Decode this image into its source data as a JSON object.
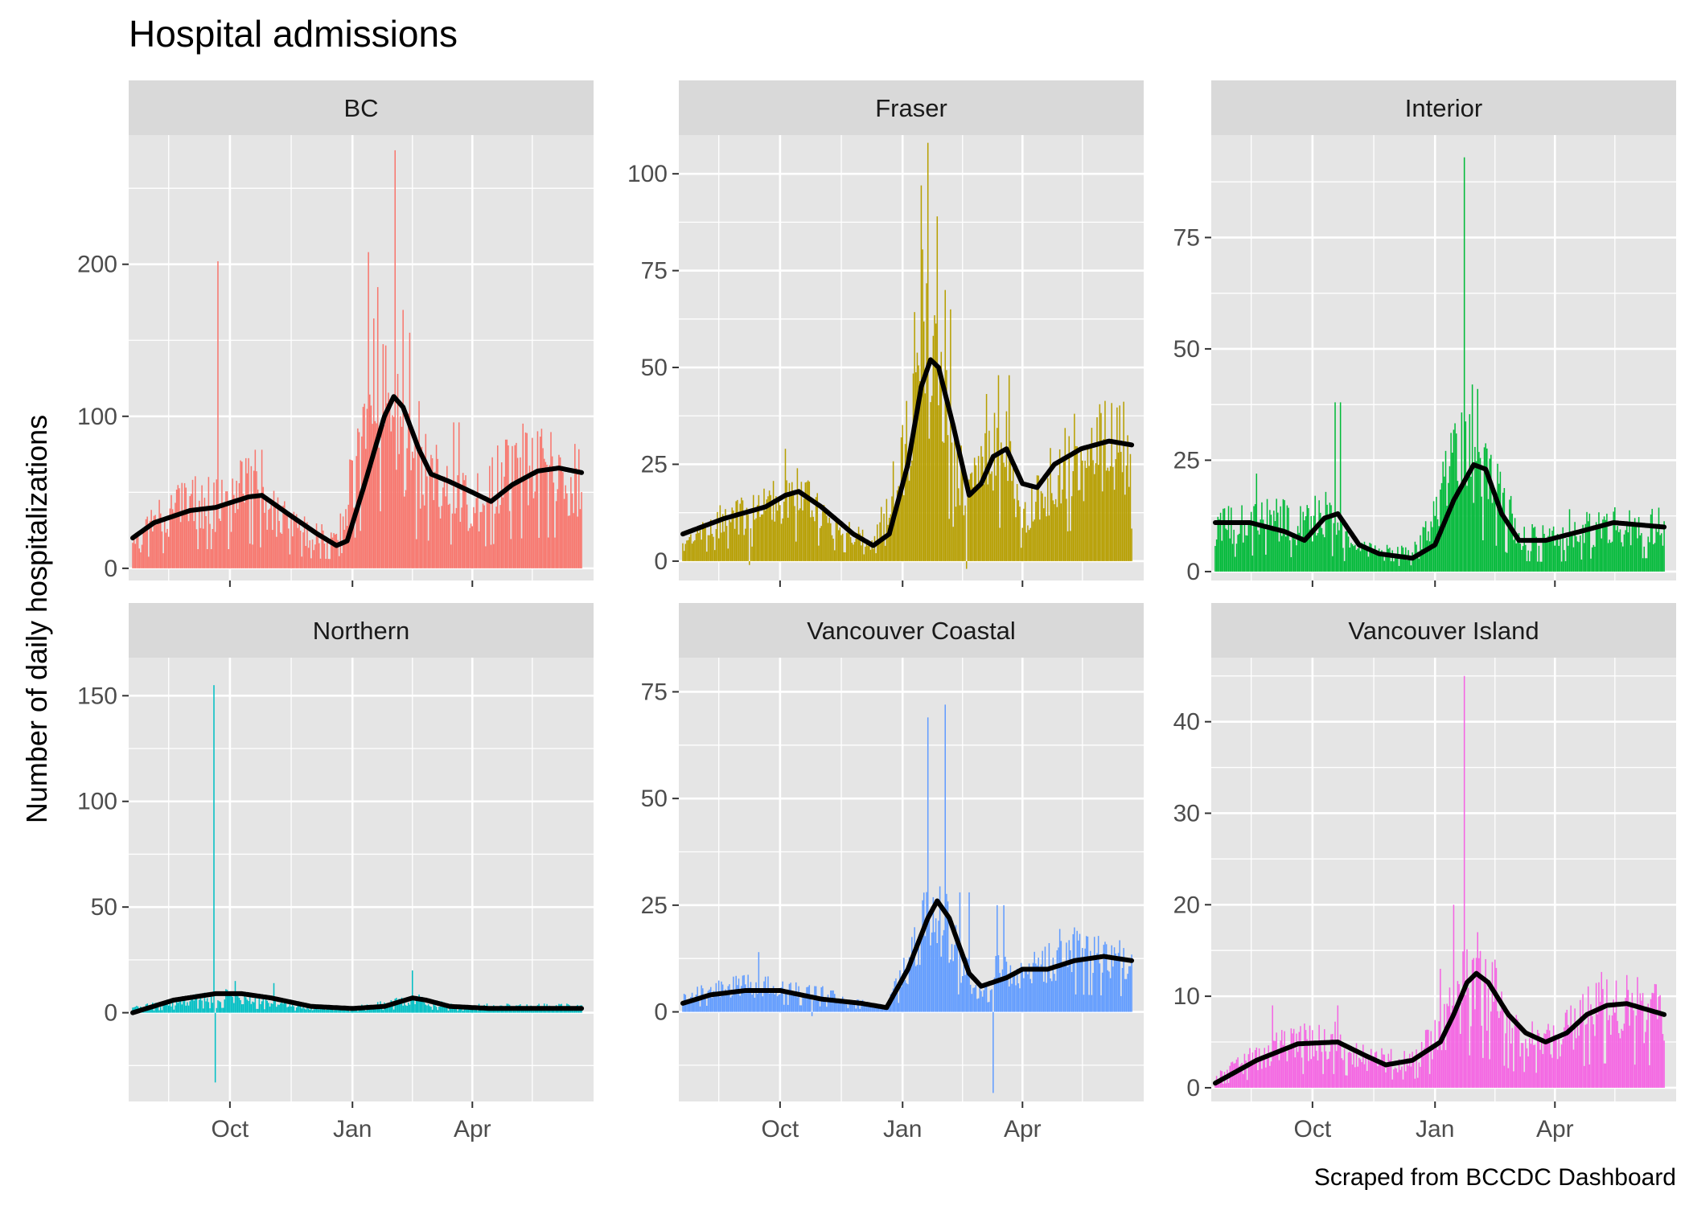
{
  "chart_data": {
    "type": "bar",
    "title": "Hospital admissions",
    "ylabel": "Number of daily hospitalizations",
    "xlabel": "",
    "caption": "Scraped from BCCDC Dashboard",
    "x_tick_labels": [
      "Oct",
      "Jan",
      "Apr"
    ],
    "x_range": [
      "2020-07-17",
      "2021-07-01"
    ],
    "x_ticks": [
      "2020-10-01",
      "2021-01-01",
      "2021-04-01"
    ],
    "x_minor_ticks": [
      "2020-08-16",
      "2020-11-16",
      "2021-02-15",
      "2021-05-16"
    ],
    "grid": true,
    "legend": "none",
    "smooth_line_color": "#000000",
    "panel_background": "#e5e5e5",
    "strip_background": "#d9d9d9",
    "panels": [
      {
        "name": "BC",
        "color": "#F8766D",
        "ylim": [
          -8,
          285
        ],
        "yticks": [
          0,
          100,
          200
        ],
        "yminor": [
          50,
          150,
          250
        ],
        "bar_knots": [
          [
            "2020-07-20",
            12
          ],
          [
            "2020-08-05",
            30
          ],
          [
            "2020-09-01",
            42
          ],
          [
            "2020-10-01",
            42
          ],
          [
            "2020-10-15",
            55
          ],
          [
            "2020-11-01",
            38
          ],
          [
            "2020-12-01",
            22
          ],
          [
            "2020-12-20",
            20
          ],
          [
            "2021-01-01",
            60
          ],
          [
            "2021-01-20",
            130
          ],
          [
            "2021-02-01",
            100
          ],
          [
            "2021-02-15",
            65
          ],
          [
            "2021-03-01",
            60
          ],
          [
            "2021-03-20",
            50
          ],
          [
            "2021-04-01",
            40
          ],
          [
            "2021-05-01",
            65
          ],
          [
            "2021-06-01",
            68
          ],
          [
            "2021-06-20",
            58
          ]
        ],
        "spikes": [
          [
            "2020-09-22",
            202
          ],
          [
            "2021-01-05",
            92
          ],
          [
            "2021-01-13",
            208
          ],
          [
            "2021-01-20",
            185
          ],
          [
            "2021-02-02",
            275
          ],
          [
            "2021-02-08",
            170
          ],
          [
            "2021-02-13",
            155
          ],
          [
            "2021-02-20",
            110
          ],
          [
            "2021-03-18",
            96
          ],
          [
            "2021-03-22",
            96
          ],
          [
            "2020-10-20",
            78
          ],
          [
            "2020-10-25",
            78
          ]
        ],
        "smooth": [
          [
            "2020-07-20",
            20
          ],
          [
            "2020-08-05",
            30
          ],
          [
            "2020-09-01",
            38
          ],
          [
            "2020-09-20",
            40
          ],
          [
            "2020-10-15",
            47
          ],
          [
            "2020-10-25",
            48
          ],
          [
            "2020-11-15",
            35
          ],
          [
            "2020-12-05",
            23
          ],
          [
            "2020-12-20",
            15
          ],
          [
            "2020-12-28",
            18
          ],
          [
            "2021-01-10",
            55
          ],
          [
            "2021-01-25",
            100
          ],
          [
            "2021-02-01",
            113
          ],
          [
            "2021-02-08",
            106
          ],
          [
            "2021-02-20",
            78
          ],
          [
            "2021-03-01",
            62
          ],
          [
            "2021-03-15",
            57
          ],
          [
            "2021-04-01",
            50
          ],
          [
            "2021-04-15",
            44
          ],
          [
            "2021-05-01",
            55
          ],
          [
            "2021-05-20",
            64
          ],
          [
            "2021-06-05",
            66
          ],
          [
            "2021-06-22",
            63
          ]
        ]
      },
      {
        "name": "Fraser",
        "color": "#B79F00",
        "ylim": [
          -5,
          110
        ],
        "yticks": [
          0,
          25,
          50,
          75,
          100
        ],
        "yminor": [
          12.5,
          37.5,
          62.5,
          87.5
        ],
        "bar_knots": [
          [
            "2020-07-20",
            4
          ],
          [
            "2020-08-15",
            10
          ],
          [
            "2020-09-15",
            13
          ],
          [
            "2020-10-05",
            18
          ],
          [
            "2020-10-25",
            15
          ],
          [
            "2020-11-15",
            8
          ],
          [
            "2020-12-10",
            5
          ],
          [
            "2021-01-01",
            25
          ],
          [
            "2021-01-15",
            60
          ],
          [
            "2021-01-30",
            50
          ],
          [
            "2021-02-10",
            25
          ],
          [
            "2021-02-20",
            15
          ],
          [
            "2021-03-05",
            30
          ],
          [
            "2021-03-20",
            28
          ],
          [
            "2021-04-01",
            10
          ],
          [
            "2021-05-01",
            25
          ],
          [
            "2021-06-01",
            30
          ],
          [
            "2021-06-22",
            28
          ]
        ],
        "spikes": [
          [
            "2021-01-15",
            97
          ],
          [
            "2021-01-20",
            108
          ],
          [
            "2021-01-27",
            89
          ],
          [
            "2021-02-02",
            70
          ],
          [
            "2021-02-06",
            65
          ],
          [
            "2021-03-14",
            48
          ],
          [
            "2021-03-22",
            48
          ],
          [
            "2020-10-05",
            29
          ],
          [
            "2021-02-18",
            -2
          ],
          [
            "2020-09-08",
            -1
          ]
        ],
        "smooth": [
          [
            "2020-07-20",
            7
          ],
          [
            "2020-08-20",
            11
          ],
          [
            "2020-09-20",
            14
          ],
          [
            "2020-10-05",
            17
          ],
          [
            "2020-10-15",
            18
          ],
          [
            "2020-11-01",
            14
          ],
          [
            "2020-11-25",
            7
          ],
          [
            "2020-12-10",
            4
          ],
          [
            "2020-12-22",
            7
          ],
          [
            "2021-01-05",
            25
          ],
          [
            "2021-01-15",
            45
          ],
          [
            "2021-01-22",
            52
          ],
          [
            "2021-01-28",
            50
          ],
          [
            "2021-02-08",
            35
          ],
          [
            "2021-02-20",
            17
          ],
          [
            "2021-03-01",
            20
          ],
          [
            "2021-03-10",
            27
          ],
          [
            "2021-03-20",
            29
          ],
          [
            "2021-04-01",
            20
          ],
          [
            "2021-04-12",
            19
          ],
          [
            "2021-04-25",
            25
          ],
          [
            "2021-05-15",
            29
          ],
          [
            "2021-06-05",
            31
          ],
          [
            "2021-06-22",
            30
          ]
        ]
      },
      {
        "name": "Interior",
        "color": "#00BA38",
        "ylim": [
          -2,
          98
        ],
        "yticks": [
          0,
          25,
          50,
          75
        ],
        "yminor": [
          12.5,
          37.5,
          62.5,
          87.5
        ],
        "bar_knots": [
          [
            "2020-07-20",
            10
          ],
          [
            "2020-09-01",
            13
          ],
          [
            "2020-09-20",
            10
          ],
          [
            "2020-10-10",
            14
          ],
          [
            "2020-11-01",
            5
          ],
          [
            "2020-12-01",
            4
          ],
          [
            "2020-12-20",
            5
          ],
          [
            "2021-01-10",
            20
          ],
          [
            "2021-01-25",
            28
          ],
          [
            "2021-02-15",
            20
          ],
          [
            "2021-03-05",
            8
          ],
          [
            "2021-04-01",
            7
          ],
          [
            "2021-05-01",
            10
          ],
          [
            "2021-06-22",
            10
          ]
        ],
        "spikes": [
          [
            "2020-08-20",
            22
          ],
          [
            "2020-10-18",
            38
          ],
          [
            "2020-10-22",
            38
          ],
          [
            "2021-01-23",
            93
          ],
          [
            "2021-01-29",
            42
          ],
          [
            "2021-02-02",
            41
          ],
          [
            "2021-01-17",
            31
          ],
          [
            "2021-04-12",
            14
          ]
        ],
        "smooth": [
          [
            "2020-07-20",
            11
          ],
          [
            "2020-08-15",
            11
          ],
          [
            "2020-09-10",
            9
          ],
          [
            "2020-09-25",
            7
          ],
          [
            "2020-10-10",
            12
          ],
          [
            "2020-10-20",
            13
          ],
          [
            "2020-11-05",
            6
          ],
          [
            "2020-11-20",
            4
          ],
          [
            "2020-12-15",
            3
          ],
          [
            "2021-01-01",
            6
          ],
          [
            "2021-01-15",
            16
          ],
          [
            "2021-01-30",
            24
          ],
          [
            "2021-02-08",
            23
          ],
          [
            "2021-02-20",
            13
          ],
          [
            "2021-03-05",
            7
          ],
          [
            "2021-03-25",
            7
          ],
          [
            "2021-04-20",
            9
          ],
          [
            "2021-05-15",
            11
          ],
          [
            "2021-06-22",
            10
          ]
        ]
      },
      {
        "name": "Northern",
        "color": "#00BFC4",
        "ylim": [
          -42,
          168
        ],
        "yticks": [
          0,
          50,
          100,
          150
        ],
        "yminor": [
          -25,
          25,
          75,
          125
        ],
        "bar_knots": [
          [
            "2020-07-20",
            2
          ],
          [
            "2020-09-01",
            6
          ],
          [
            "2020-10-01",
            8
          ],
          [
            "2020-11-01",
            5
          ],
          [
            "2020-12-01",
            2
          ],
          [
            "2021-01-01",
            2
          ],
          [
            "2021-02-01",
            5
          ],
          [
            "2021-02-20",
            6
          ],
          [
            "2021-03-15",
            3
          ],
          [
            "2021-06-22",
            3
          ]
        ],
        "spikes": [
          [
            "2020-09-19",
            155
          ],
          [
            "2020-09-20",
            -33
          ],
          [
            "2020-10-05",
            15
          ],
          [
            "2020-11-03",
            14
          ],
          [
            "2021-02-15",
            20
          ]
        ],
        "smooth": [
          [
            "2020-07-20",
            0
          ],
          [
            "2020-08-20",
            6
          ],
          [
            "2020-09-20",
            9
          ],
          [
            "2020-10-10",
            9
          ],
          [
            "2020-11-01",
            7
          ],
          [
            "2020-12-01",
            3
          ],
          [
            "2021-01-01",
            2
          ],
          [
            "2021-01-25",
            3
          ],
          [
            "2021-02-15",
            7
          ],
          [
            "2021-02-25",
            6
          ],
          [
            "2021-03-15",
            3
          ],
          [
            "2021-04-15",
            2
          ],
          [
            "2021-06-22",
            2
          ]
        ]
      },
      {
        "name": "Vancouver Coastal",
        "color": "#619CFF",
        "ylim": [
          -21,
          83
        ],
        "yticks": [
          0,
          25,
          50,
          75
        ],
        "yminor": [
          -12.5,
          12.5,
          37.5,
          62.5
        ],
        "bar_knots": [
          [
            "2020-07-20",
            3
          ],
          [
            "2020-08-20",
            6
          ],
          [
            "2020-09-20",
            6
          ],
          [
            "2020-10-20",
            5
          ],
          [
            "2020-11-20",
            3
          ],
          [
            "2020-12-20",
            1
          ],
          [
            "2021-01-10",
            15
          ],
          [
            "2021-01-25",
            25
          ],
          [
            "2021-02-10",
            15
          ],
          [
            "2021-02-25",
            5
          ],
          [
            "2021-03-15",
            10
          ],
          [
            "2021-04-01",
            8
          ],
          [
            "2021-05-01",
            14
          ],
          [
            "2021-06-22",
            12
          ]
        ],
        "spikes": [
          [
            "2021-01-20",
            69
          ],
          [
            "2021-02-02",
            72
          ],
          [
            "2021-02-13",
            28
          ],
          [
            "2021-02-20",
            28
          ],
          [
            "2021-03-10",
            -19
          ],
          [
            "2021-03-13",
            25
          ],
          [
            "2021-03-18",
            25
          ],
          [
            "2020-09-15",
            14
          ],
          [
            "2020-10-25",
            -1
          ]
        ],
        "smooth": [
          [
            "2020-07-20",
            2
          ],
          [
            "2020-08-10",
            4
          ],
          [
            "2020-09-05",
            5
          ],
          [
            "2020-10-01",
            5
          ],
          [
            "2020-11-01",
            3
          ],
          [
            "2020-12-01",
            2
          ],
          [
            "2020-12-20",
            1
          ],
          [
            "2021-01-05",
            10
          ],
          [
            "2021-01-20",
            22
          ],
          [
            "2021-01-27",
            26
          ],
          [
            "2021-02-05",
            22
          ],
          [
            "2021-02-20",
            9
          ],
          [
            "2021-03-01",
            6
          ],
          [
            "2021-03-20",
            8
          ],
          [
            "2021-04-01",
            10
          ],
          [
            "2021-04-20",
            10
          ],
          [
            "2021-05-10",
            12
          ],
          [
            "2021-06-01",
            13
          ],
          [
            "2021-06-22",
            12
          ]
        ]
      },
      {
        "name": "Vancouver Island",
        "color": "#F564E3",
        "ylim": [
          -1.5,
          47
        ],
        "yticks": [
          0,
          10,
          20,
          30,
          40
        ],
        "yminor": [
          5,
          15,
          25,
          35,
          45
        ],
        "bar_knots": [
          [
            "2020-07-20",
            1
          ],
          [
            "2020-08-15",
            3
          ],
          [
            "2020-09-15",
            5
          ],
          [
            "2020-10-20",
            5
          ],
          [
            "2020-11-15",
            3
          ],
          [
            "2020-12-15",
            3
          ],
          [
            "2021-01-10",
            7
          ],
          [
            "2021-01-25",
            12
          ],
          [
            "2021-02-15",
            10
          ],
          [
            "2021-03-01",
            6
          ],
          [
            "2021-04-01",
            5
          ],
          [
            "2021-05-01",
            9
          ],
          [
            "2021-06-22",
            8
          ]
        ],
        "spikes": [
          [
            "2021-01-23",
            45
          ],
          [
            "2021-01-05",
            13
          ],
          [
            "2021-01-15",
            20
          ],
          [
            "2021-02-02",
            17
          ],
          [
            "2021-02-15",
            14
          ],
          [
            "2020-09-01",
            9
          ],
          [
            "2020-10-20",
            9
          ]
        ],
        "smooth": [
          [
            "2020-07-20",
            0.5
          ],
          [
            "2020-08-20",
            3
          ],
          [
            "2020-09-20",
            4.8
          ],
          [
            "2020-10-20",
            5
          ],
          [
            "2020-11-10",
            3.5
          ],
          [
            "2020-11-25",
            2.5
          ],
          [
            "2020-12-15",
            3
          ],
          [
            "2021-01-05",
            5
          ],
          [
            "2021-01-15",
            8
          ],
          [
            "2021-01-25",
            11.5
          ],
          [
            "2021-02-01",
            12.5
          ],
          [
            "2021-02-10",
            11.5
          ],
          [
            "2021-02-25",
            8
          ],
          [
            "2021-03-10",
            6
          ],
          [
            "2021-03-25",
            5
          ],
          [
            "2021-04-10",
            6
          ],
          [
            "2021-04-25",
            8
          ],
          [
            "2021-05-10",
            9
          ],
          [
            "2021-05-25",
            9.2
          ],
          [
            "2021-06-22",
            8
          ]
        ]
      }
    ]
  }
}
